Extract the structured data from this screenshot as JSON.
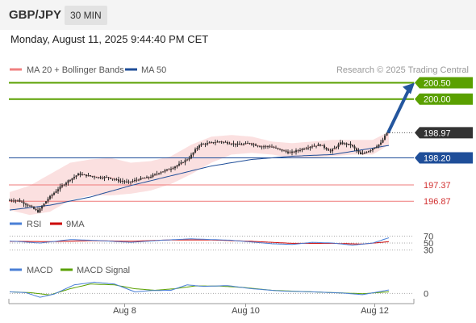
{
  "header": {
    "symbol": "GBP/JPY",
    "timeframe": "30 MIN",
    "datetime": "Monday, August 11, 2025 9:44:40 PM CET"
  },
  "colors": {
    "bollinger": "#f08080",
    "ma50": "#1f4e99",
    "resistance": "#5aa000",
    "support": "#ef7a7a",
    "current": "#333333",
    "rsi": "#4a7fd6",
    "rsi_ma": "#cc0000",
    "macd": "#4a7fd6",
    "macd_signal": "#5aa000",
    "arrow": "#24569e"
  },
  "chart_data": [
    {
      "type": "candlestick",
      "legend": [
        {
          "label": "MA 20 + Bollinger Bands",
          "color": "#f08080"
        },
        {
          "label": "MA 50",
          "color": "#1f4e99"
        }
      ],
      "credit": "Research © 2025 Trading Central",
      "ylim": [
        196.48,
        200.76
      ],
      "levels": [
        {
          "value": 200.5,
          "label": "200.50",
          "kind": "resistance"
        },
        {
          "value": 200.0,
          "label": "200.00",
          "kind": "resistance"
        },
        {
          "value": 198.97,
          "label": "198.97",
          "kind": "current"
        },
        {
          "value": 198.2,
          "label": "198.20",
          "kind": "pivot"
        },
        {
          "value": 197.37,
          "label": "197.37",
          "kind": "support"
        },
        {
          "value": 196.87,
          "label": "196.87",
          "kind": "support"
        }
      ],
      "anchors": [
        [
          0,
          196.9
        ],
        [
          5,
          196.9
        ],
        [
          10,
          196.75
        ],
        [
          15,
          196.55
        ],
        [
          20,
          196.95
        ],
        [
          25,
          197.25
        ],
        [
          30,
          197.5
        ],
        [
          35,
          197.7
        ],
        [
          40,
          197.65
        ],
        [
          45,
          197.6
        ],
        [
          50,
          197.6
        ],
        [
          55,
          197.5
        ],
        [
          60,
          197.45
        ],
        [
          65,
          197.55
        ],
        [
          70,
          197.6
        ],
        [
          75,
          197.75
        ],
        [
          80,
          197.85
        ],
        [
          85,
          198.0
        ],
        [
          90,
          198.2
        ],
        [
          95,
          198.6
        ],
        [
          100,
          198.65
        ],
        [
          105,
          198.7
        ],
        [
          110,
          198.65
        ],
        [
          115,
          198.6
        ],
        [
          120,
          198.65
        ],
        [
          125,
          198.55
        ],
        [
          130,
          198.55
        ],
        [
          135,
          198.45
        ],
        [
          140,
          198.35
        ],
        [
          145,
          198.45
        ],
        [
          150,
          198.55
        ],
        [
          155,
          198.6
        ],
        [
          160,
          198.4
        ],
        [
          165,
          198.65
        ],
        [
          170,
          198.6
        ],
        [
          175,
          198.3
        ],
        [
          180,
          198.45
        ],
        [
          185,
          198.65
        ],
        [
          188,
          198.97
        ]
      ],
      "ma50": [
        [
          0,
          196.6
        ],
        [
          20,
          196.75
        ],
        [
          40,
          197.0
        ],
        [
          60,
          197.35
        ],
        [
          80,
          197.65
        ],
        [
          100,
          197.95
        ],
        [
          120,
          198.15
        ],
        [
          140,
          198.25
        ],
        [
          160,
          198.3
        ],
        [
          175,
          198.45
        ],
        [
          188,
          198.58
        ]
      ],
      "bb_upper": [
        [
          0,
          197.15
        ],
        [
          10,
          197.35
        ],
        [
          20,
          197.7
        ],
        [
          30,
          198.05
        ],
        [
          40,
          198.15
        ],
        [
          50,
          198.2
        ],
        [
          60,
          198.05
        ],
        [
          70,
          198.1
        ],
        [
          80,
          198.25
        ],
        [
          90,
          198.6
        ],
        [
          100,
          198.85
        ],
        [
          110,
          198.9
        ],
        [
          120,
          198.85
        ],
        [
          130,
          198.7
        ],
        [
          140,
          198.65
        ],
        [
          150,
          198.7
        ],
        [
          160,
          198.75
        ],
        [
          170,
          198.75
        ],
        [
          180,
          198.75
        ],
        [
          188,
          199.0
        ]
      ],
      "bb_lower": [
        [
          0,
          196.6
        ],
        [
          10,
          196.45
        ],
        [
          20,
          196.55
        ],
        [
          30,
          196.9
        ],
        [
          40,
          197.05
        ],
        [
          50,
          197.05
        ],
        [
          60,
          197.1
        ],
        [
          70,
          197.2
        ],
        [
          80,
          197.4
        ],
        [
          90,
          197.7
        ],
        [
          100,
          198.05
        ],
        [
          110,
          198.3
        ],
        [
          120,
          198.35
        ],
        [
          130,
          198.3
        ],
        [
          140,
          198.2
        ],
        [
          150,
          198.2
        ],
        [
          160,
          198.25
        ],
        [
          170,
          198.3
        ],
        [
          180,
          198.3
        ],
        [
          188,
          198.6
        ]
      ],
      "forecast_target": 200.5,
      "x_ticks": [
        {
          "label": "Aug 8",
          "bar": 57
        },
        {
          "label": "Aug 10",
          "bar": 117
        },
        {
          "label": "Aug 12",
          "bar": 181
        }
      ]
    },
    {
      "type": "line",
      "legend": [
        {
          "label": "RSI",
          "color": "#4a7fd6"
        },
        {
          "label": "9MA",
          "color": "#cc0000"
        }
      ],
      "ylim": [
        20,
        80
      ],
      "levels": [
        70,
        50,
        30
      ],
      "level_labels": [
        "70",
        "50",
        "30"
      ],
      "rsi": [
        [
          0,
          56
        ],
        [
          15,
          50
        ],
        [
          30,
          60
        ],
        [
          45,
          57
        ],
        [
          60,
          52
        ],
        [
          75,
          58
        ],
        [
          90,
          62
        ],
        [
          100,
          60
        ],
        [
          110,
          58
        ],
        [
          120,
          53
        ],
        [
          130,
          48
        ],
        [
          140,
          46
        ],
        [
          150,
          52
        ],
        [
          160,
          50
        ],
        [
          170,
          44
        ],
        [
          180,
          50
        ],
        [
          188,
          65
        ]
      ],
      "rsi_ma": [
        [
          0,
          55
        ],
        [
          20,
          54
        ],
        [
          40,
          57
        ],
        [
          60,
          55
        ],
        [
          80,
          59
        ],
        [
          100,
          59
        ],
        [
          120,
          55
        ],
        [
          140,
          49
        ],
        [
          160,
          49
        ],
        [
          175,
          47
        ],
        [
          188,
          54
        ]
      ]
    },
    {
      "type": "line",
      "legend": [
        {
          "label": "MACD",
          "color": "#4a7fd6"
        },
        {
          "label": "MACD Signal",
          "color": "#5aa000"
        }
      ],
      "ylim": [
        -0.45,
        0.95
      ],
      "levels": [
        0
      ],
      "level_labels": [
        "0"
      ],
      "macd": [
        [
          0,
          0.1
        ],
        [
          8,
          0.05
        ],
        [
          15,
          -0.25
        ],
        [
          22,
          -0.05
        ],
        [
          32,
          0.55
        ],
        [
          42,
          0.72
        ],
        [
          52,
          0.6
        ],
        [
          62,
          0.1
        ],
        [
          70,
          0.18
        ],
        [
          80,
          0.2
        ],
        [
          88,
          0.55
        ],
        [
          96,
          0.45
        ],
        [
          108,
          0.5
        ],
        [
          120,
          0.3
        ],
        [
          135,
          0.15
        ],
        [
          150,
          0.1
        ],
        [
          165,
          0.02
        ],
        [
          175,
          -0.08
        ],
        [
          188,
          0.22
        ]
      ],
      "signal": [
        [
          0,
          0.1
        ],
        [
          10,
          0.05
        ],
        [
          20,
          -0.1
        ],
        [
          30,
          0.3
        ],
        [
          40,
          0.6
        ],
        [
          52,
          0.55
        ],
        [
          62,
          0.3
        ],
        [
          72,
          0.2
        ],
        [
          82,
          0.3
        ],
        [
          92,
          0.48
        ],
        [
          104,
          0.47
        ],
        [
          116,
          0.38
        ],
        [
          130,
          0.2
        ],
        [
          145,
          0.12
        ],
        [
          160,
          0.05
        ],
        [
          175,
          -0.02
        ],
        [
          188,
          0.1
        ]
      ]
    }
  ]
}
